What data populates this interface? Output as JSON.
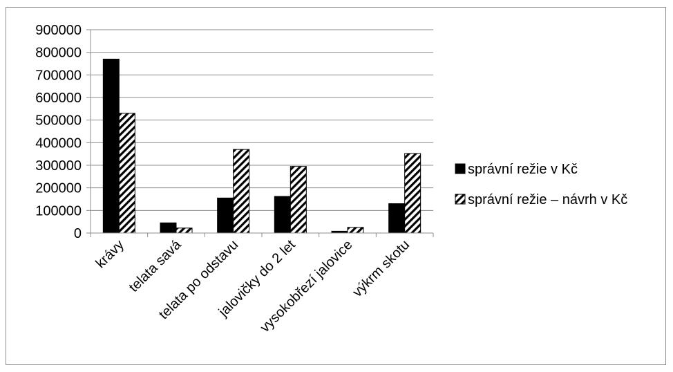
{
  "chart_data": {
    "type": "bar",
    "title": "",
    "xlabel": "",
    "ylabel": "",
    "categories": [
      "krávy",
      "telata savá",
      "telata po odstavu",
      "jalovičky do 2 let",
      "vysokobřezí jalovice",
      "výkrm skotu"
    ],
    "series": [
      {
        "name": "správní režie v Kč",
        "values": [
          770000,
          45000,
          155000,
          162000,
          8000,
          130000
        ],
        "pattern": "solid",
        "color": "#000000"
      },
      {
        "name": "správní režie – návrh v Kč",
        "values": [
          530000,
          22000,
          370000,
          295000,
          25000,
          352000
        ],
        "pattern": "diagonal-stripes",
        "color": "#000000"
      }
    ],
    "ylim": [
      0,
      900000
    ],
    "yticks": [
      "0",
      "100000",
      "200000",
      "300000",
      "400000",
      "500000",
      "600000",
      "700000",
      "800000",
      "900000"
    ],
    "grid": true,
    "legend_position": "right"
  }
}
